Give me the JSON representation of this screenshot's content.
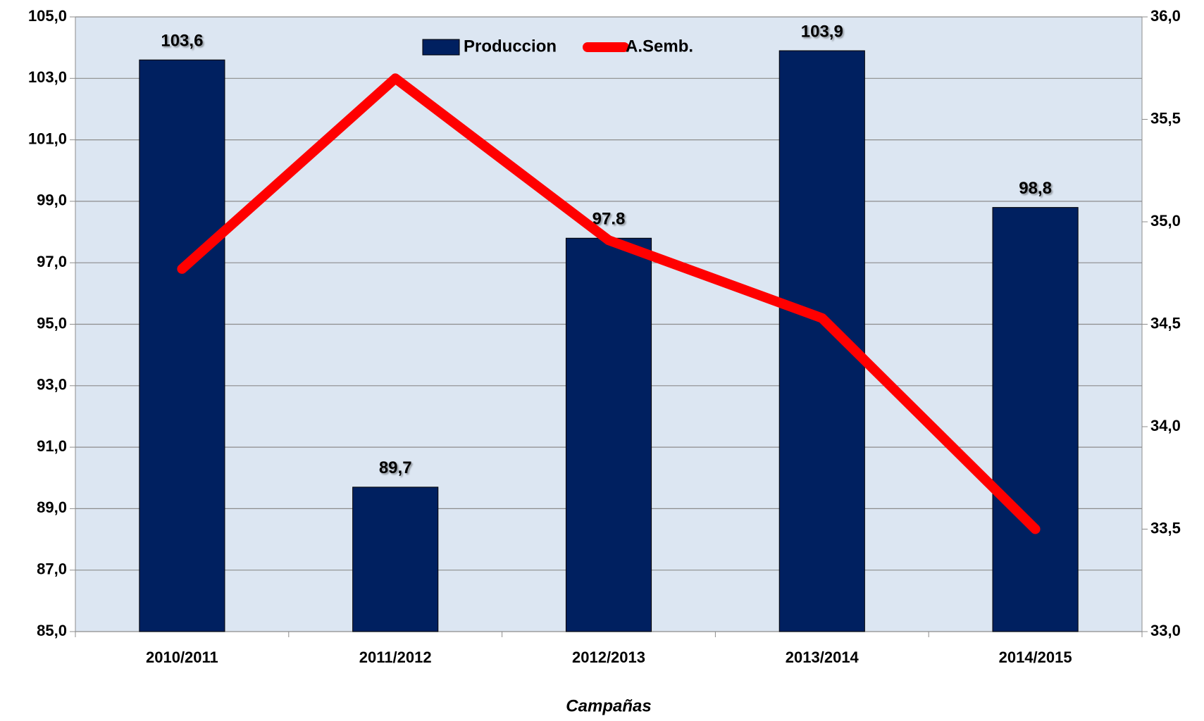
{
  "chart_data": {
    "type": "bar",
    "categories": [
      "2010/2011",
      "2011/2012",
      "2012/2013",
      "2013/2014",
      "2014/2015"
    ],
    "series": [
      {
        "name": "Produccion",
        "color": "#002060",
        "values": [
          103.6,
          89.7,
          97.8,
          103.9,
          98.8
        ],
        "value_labels": [
          "103,6",
          "89,7",
          "97.8",
          "103,9",
          "98,8"
        ]
      },
      {
        "name": "A.Semb.",
        "color": "#ff0000",
        "axis": "y2",
        "type": "line",
        "values": [
          34.77,
          35.7,
          34.91,
          34.53,
          33.5
        ]
      }
    ],
    "xlabel": "Campañas",
    "ylim": [
      85,
      105
    ],
    "yticks": [
      {
        "value": 85,
        "label": "85,0"
      },
      {
        "value": 87,
        "label": "87,0"
      },
      {
        "value": 89,
        "label": "89,0"
      },
      {
        "value": 91,
        "label": "91,0"
      },
      {
        "value": 93,
        "label": "93,0"
      },
      {
        "value": 95,
        "label": "95,0"
      },
      {
        "value": 97,
        "label": "97,0"
      },
      {
        "value": 99,
        "label": "99,0"
      },
      {
        "value": 101,
        "label": "101,0"
      },
      {
        "value": 103,
        "label": "103,0"
      },
      {
        "value": 105,
        "label": "105,0"
      }
    ],
    "y2lim": [
      33,
      36
    ],
    "y2ticks": [
      {
        "value": 33,
        "label": "33,0"
      },
      {
        "value": 33.5,
        "label": "33,5"
      },
      {
        "value": 34,
        "label": "34,0"
      },
      {
        "value": 34.5,
        "label": "34,5"
      },
      {
        "value": 35,
        "label": "35,0"
      },
      {
        "value": 35.5,
        "label": "35,5"
      },
      {
        "value": 36,
        "label": "36,0"
      }
    ],
    "grid": true,
    "legend": "top"
  }
}
